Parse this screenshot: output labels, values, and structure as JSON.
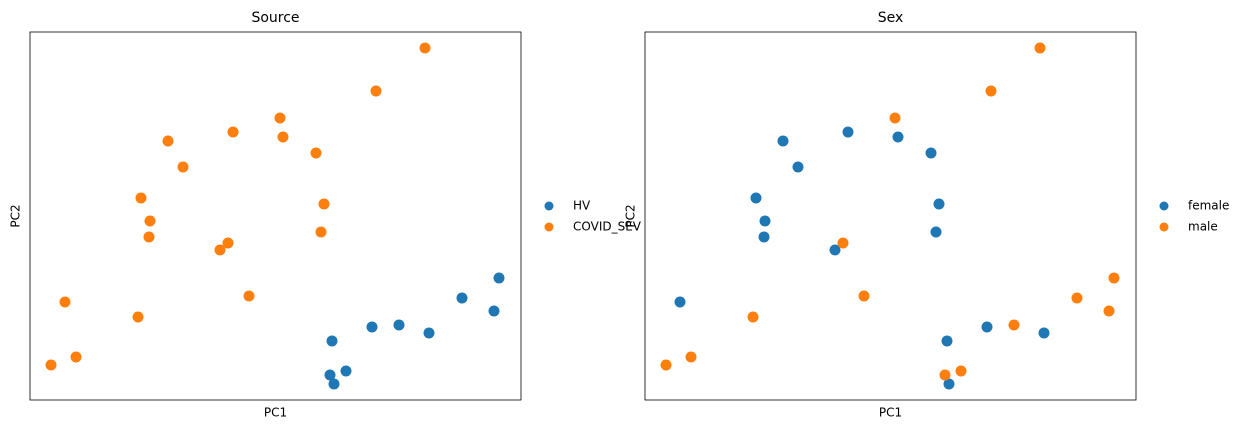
{
  "chart_data": [
    {
      "type": "scatter",
      "title": "Source",
      "x_label": "PC1",
      "y_label": "PC2",
      "xlim": [
        0,
        491
      ],
      "ylim": [
        0,
        368
      ],
      "series": [
        {
          "name": "HV",
          "color": "#1f77b4",
          "x": [
            469,
            432,
            464,
            342,
            369,
            399,
            302,
            316,
            300,
            304
          ],
          "values": [
            122,
            102,
            89,
            73,
            75,
            67,
            59,
            29,
            25,
            16
          ]
        },
        {
          "name": "COVID_SEV",
          "color": "#ff7f0e",
          "x": [
            395,
            346,
            250,
            253,
            203,
            138,
            153,
            286,
            111,
            120,
            119,
            294,
            291,
            198,
            190,
            219,
            35,
            108,
            46,
            21
          ],
          "values": [
            352,
            309,
            282,
            263,
            268,
            259,
            233,
            247,
            202,
            179,
            163,
            196,
            168,
            157,
            150,
            104,
            98,
            83,
            43,
            35
          ]
        }
      ]
    },
    {
      "type": "scatter",
      "title": "Sex",
      "x_label": "PC1",
      "y_label": "PC2",
      "xlim": [
        0,
        491
      ],
      "ylim": [
        0,
        368
      ],
      "series": [
        {
          "name": "female",
          "color": "#1f77b4",
          "x": [
            138,
            153,
            203,
            253,
            286,
            111,
            120,
            119,
            294,
            291,
            190,
            35,
            342,
            399,
            302,
            304
          ],
          "values": [
            259,
            233,
            268,
            263,
            247,
            202,
            179,
            163,
            196,
            168,
            150,
            98,
            73,
            67,
            59,
            16
          ]
        },
        {
          "name": "male",
          "color": "#ff7f0e",
          "x": [
            250,
            198,
            219,
            108,
            46,
            21,
            346,
            395,
            469,
            432,
            464,
            369,
            316,
            300
          ],
          "values": [
            282,
            157,
            104,
            83,
            43,
            35,
            309,
            352,
            122,
            102,
            89,
            75,
            29,
            25
          ]
        }
      ]
    }
  ]
}
